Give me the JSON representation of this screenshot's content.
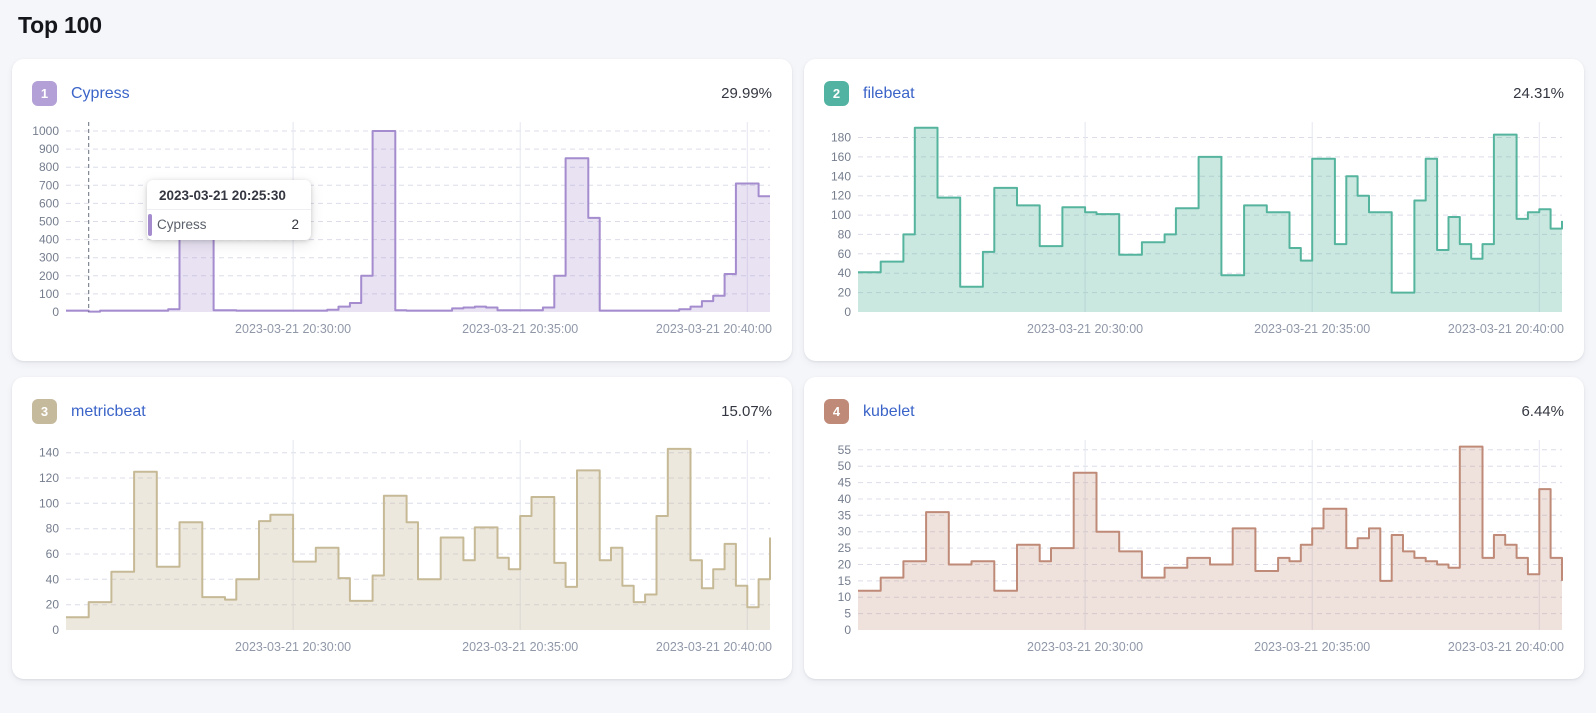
{
  "page": {
    "title": "Top 100",
    "background_color": "#f5f6fa"
  },
  "cards": [
    {
      "rank": "1",
      "name": "Cypress",
      "percent": "29.99%"
    },
    {
      "rank": "2",
      "name": "filebeat",
      "percent": "24.31%"
    },
    {
      "rank": "3",
      "name": "metricbeat",
      "percent": "15.07%"
    },
    {
      "rank": "4",
      "name": "kubelet",
      "percent": "6.44%"
    }
  ],
  "tooltip": {
    "title": "2023-03-21 20:25:30",
    "series": "Cypress",
    "value": "2"
  },
  "chart_data": [
    {
      "type": "area",
      "step": true,
      "series": "Cypress",
      "color": "#a48cce",
      "fill": "rgba(164,140,206,0.25)",
      "badge_color": "#b2a0d6",
      "x_start": "2023-03-21 20:25:00",
      "x_interval_seconds": 15,
      "x_tick_labels": [
        "2023-03-21 20:30:00",
        "2023-03-21 20:35:00",
        "2023-03-21 20:40:00"
      ],
      "x_tick_indices": [
        20,
        40,
        60
      ],
      "y_ticks": [
        0,
        100,
        200,
        300,
        400,
        500,
        600,
        700,
        800,
        900,
        1000
      ],
      "ylim": [
        0,
        1050
      ],
      "grid": true,
      "cursor_index": 2,
      "values": [
        8,
        8,
        2,
        8,
        8,
        8,
        8,
        8,
        8,
        15,
        700,
        700,
        700,
        10,
        10,
        8,
        8,
        8,
        8,
        8,
        8,
        8,
        8,
        12,
        30,
        50,
        200,
        1000,
        1000,
        10,
        8,
        8,
        8,
        8,
        20,
        25,
        30,
        25,
        10,
        10,
        10,
        10,
        25,
        200,
        850,
        850,
        520,
        8,
        8,
        8,
        8,
        8,
        8,
        8,
        15,
        30,
        60,
        90,
        210,
        710,
        710,
        640,
        640
      ]
    },
    {
      "type": "area",
      "step": true,
      "series": "filebeat",
      "color": "#55b49d",
      "fill": "rgba(84,179,153,0.30)",
      "badge_color": "#52b3a2",
      "x_start": "2023-03-21 20:25:00",
      "x_interval_seconds": 15,
      "x_tick_labels": [
        "2023-03-21 20:30:00",
        "2023-03-21 20:35:00",
        "2023-03-21 20:40:00"
      ],
      "x_tick_indices": [
        20,
        40,
        60
      ],
      "y_ticks": [
        0,
        20,
        40,
        60,
        80,
        100,
        120,
        140,
        160,
        180
      ],
      "ylim": [
        0,
        196
      ],
      "grid": true,
      "cursor_index": null,
      "values": [
        41,
        41,
        52,
        52,
        80,
        190,
        190,
        118,
        118,
        26,
        26,
        62,
        128,
        128,
        110,
        110,
        68,
        68,
        108,
        108,
        103,
        101,
        101,
        59,
        59,
        72,
        72,
        80,
        107,
        107,
        160,
        160,
        38,
        38,
        110,
        110,
        103,
        103,
        66,
        53,
        158,
        158,
        70,
        140,
        120,
        103,
        103,
        20,
        20,
        115,
        158,
        64,
        98,
        70,
        55,
        70,
        183,
        183,
        96,
        103,
        106,
        86,
        94
      ]
    },
    {
      "type": "area",
      "step": true,
      "series": "metricbeat",
      "color": "#c6b996",
      "fill": "rgba(198,185,150,0.32)",
      "badge_color": "#c6ba9d",
      "x_start": "2023-03-21 20:25:00",
      "x_interval_seconds": 15,
      "x_tick_labels": [
        "2023-03-21 20:30:00",
        "2023-03-21 20:35:00",
        "2023-03-21 20:40:00"
      ],
      "x_tick_indices": [
        20,
        40,
        60
      ],
      "y_ticks": [
        0,
        20,
        40,
        60,
        80,
        100,
        120,
        140
      ],
      "ylim": [
        0,
        150
      ],
      "grid": true,
      "cursor_index": null,
      "values": [
        10,
        10,
        22,
        22,
        46,
        46,
        125,
        125,
        50,
        50,
        85,
        85,
        26,
        26,
        24,
        40,
        40,
        86,
        91,
        91,
        54,
        54,
        65,
        65,
        41,
        23,
        23,
        43,
        106,
        106,
        85,
        40,
        40,
        73,
        73,
        55,
        81,
        81,
        57,
        48,
        90,
        105,
        105,
        53,
        34,
        126,
        126,
        55,
        65,
        35,
        22,
        28,
        90,
        143,
        143,
        55,
        33,
        48,
        68,
        35,
        18,
        40,
        73
      ]
    },
    {
      "type": "area",
      "step": true,
      "series": "kubelet",
      "color": "#bf8a77",
      "fill": "rgba(191,138,119,0.25)",
      "badge_color": "#bf8a77",
      "x_start": "2023-03-21 20:25:00",
      "x_interval_seconds": 15,
      "x_tick_labels": [
        "2023-03-21 20:30:00",
        "2023-03-21 20:35:00",
        "2023-03-21 20:40:00"
      ],
      "x_tick_indices": [
        20,
        40,
        60
      ],
      "y_ticks": [
        0,
        5,
        10,
        15,
        20,
        25,
        30,
        35,
        40,
        45,
        50,
        55
      ],
      "ylim": [
        0,
        58
      ],
      "grid": true,
      "cursor_index": null,
      "values": [
        12,
        12,
        16,
        16,
        21,
        21,
        36,
        36,
        20,
        20,
        21,
        21,
        12,
        12,
        26,
        26,
        21,
        25,
        25,
        48,
        48,
        30,
        30,
        24,
        24,
        16,
        16,
        19,
        19,
        22,
        22,
        20,
        20,
        31,
        31,
        18,
        18,
        22,
        21,
        26,
        31,
        37,
        37,
        25,
        28,
        31,
        15,
        29,
        24,
        22,
        21,
        20,
        19,
        56,
        56,
        22,
        29,
        26,
        22,
        17,
        43,
        22,
        15
      ]
    }
  ]
}
